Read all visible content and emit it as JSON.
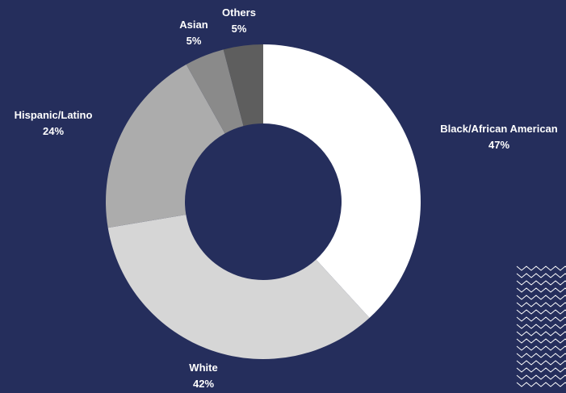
{
  "colors": {
    "background": "#252e5c",
    "label_text": "#ffffff",
    "decoration_stroke": "#ffffff"
  },
  "chart_data": {
    "type": "pie",
    "donut": true,
    "title": "",
    "slices": [
      {
        "label": "Black/African American",
        "value_label": "47%",
        "value": 47,
        "color": "#ffffff"
      },
      {
        "label": "White",
        "value_label": "42%",
        "value": 42,
        "color": "#d6d6d6"
      },
      {
        "label": "Hispanic/Latino",
        "value_label": "24%",
        "value": 24,
        "color": "#acacac"
      },
      {
        "label": "Asian",
        "value_label": "5%",
        "value": 5,
        "color": "#8a8a8a"
      },
      {
        "label": "Others",
        "value_label": "5%",
        "value": 5,
        "color": "#5e5e5e"
      }
    ]
  },
  "decoration": {
    "icon": "zigzag-pattern-icon"
  }
}
